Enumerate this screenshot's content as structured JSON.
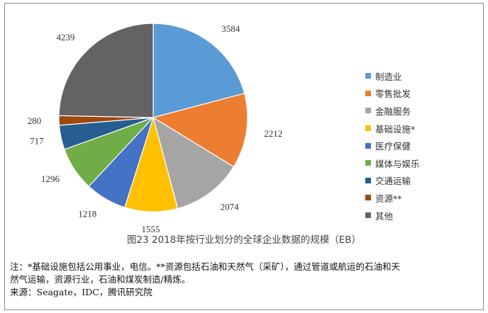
{
  "chart_data": {
    "type": "pie",
    "title": "",
    "categories": [
      "制造业",
      "零售批发",
      "金融服务",
      "基础设施*",
      "医疗保健",
      "媒体与娱乐",
      "交通运输",
      "资源**",
      "其他"
    ],
    "values": [
      3584,
      2212,
      2074,
      1555,
      1218,
      1296,
      717,
      280,
      4239
    ],
    "colors": [
      "#5b9bd5",
      "#ed7d31",
      "#a5a5a5",
      "#ffc000",
      "#4472c4",
      "#70ad47",
      "#255e91",
      "#9e480e",
      "#636363"
    ],
    "legend_position": "right"
  },
  "caption": "图23 2018年按行业划分的全球企业数据的规模（EB）",
  "notes": {
    "line1": "注：*基础设施包括公用事业，电信。**资源包括石油和天然气（采矿），通过管道或航运的石油和天",
    "line2": "然气运输，资源行业，石油和煤炭制造/精炼。",
    "line3": "来源：Seagate，IDC，腾讯研究院"
  }
}
